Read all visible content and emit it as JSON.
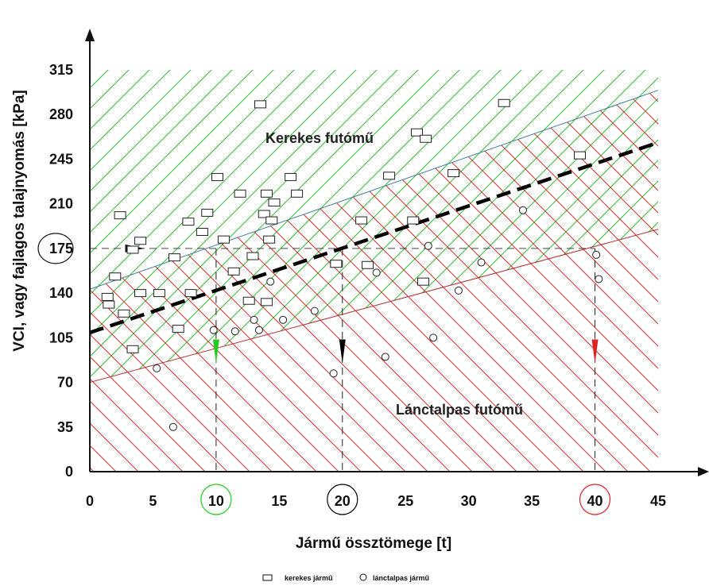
{
  "chart_data": {
    "type": "scatter",
    "xlabel": "Jármű össztömege [t]",
    "ylabel": "VCI, vagy fajlagos talajnyomás [kPa]",
    "xlim": [
      0,
      45
    ],
    "ylim": [
      0,
      315
    ],
    "x_ticks": [
      "0",
      "5",
      "10",
      "15",
      "20",
      "25",
      "30",
      "35",
      "40",
      "45"
    ],
    "y_ticks": [
      "0",
      "35",
      "70",
      "105",
      "140",
      "175",
      "210",
      "245",
      "280",
      "315"
    ],
    "grid": false,
    "zones": [
      {
        "label": "Kerekes futómű",
        "color": "#33bb33",
        "boundary": {
          "x": [
            0,
            45
          ],
          "y": [
            143,
            299
          ]
        }
      },
      {
        "label": "Lánctalpas futómű",
        "color": "#cc3333",
        "boundary": {
          "x": [
            0,
            45
          ],
          "y": [
            70,
            190
          ]
        }
      }
    ],
    "trend_line": {
      "x": [
        0,
        45
      ],
      "y": [
        109,
        258
      ],
      "color": "#000000"
    },
    "reference": {
      "y": 175,
      "x_values": [
        10,
        20,
        40
      ],
      "colors": [
        "#22cc22",
        "#000000",
        "#dd2222"
      ]
    },
    "series": [
      {
        "name": "kerekes jármű",
        "marker": "square",
        "points": [
          [
            1.4,
            137
          ],
          [
            1.5,
            131
          ],
          [
            2.0,
            153
          ],
          [
            2.4,
            201
          ],
          [
            2.7,
            124
          ],
          [
            3.4,
            96
          ],
          [
            3.4,
            174
          ],
          [
            4.0,
            181
          ],
          [
            4.0,
            140
          ],
          [
            5.5,
            140
          ],
          [
            6.7,
            168
          ],
          [
            7.0,
            112
          ],
          [
            7.8,
            196
          ],
          [
            8.0,
            140
          ],
          [
            8.9,
            188
          ],
          [
            9.3,
            203
          ],
          [
            10.1,
            231
          ],
          [
            10.6,
            182
          ],
          [
            11.4,
            157
          ],
          [
            11.9,
            218
          ],
          [
            12.6,
            134
          ],
          [
            12.9,
            169
          ],
          [
            13.5,
            288
          ],
          [
            13.8,
            202
          ],
          [
            14.0,
            218
          ],
          [
            14.0,
            133
          ],
          [
            14.2,
            182
          ],
          [
            14.4,
            197
          ],
          [
            14.6,
            211
          ],
          [
            15.9,
            231
          ],
          [
            16.4,
            218
          ],
          [
            19.5,
            163
          ],
          [
            21.5,
            197
          ],
          [
            22.0,
            162
          ],
          [
            23.7,
            232
          ],
          [
            25.6,
            197
          ],
          [
            25.9,
            266
          ],
          [
            26.4,
            149
          ],
          [
            26.6,
            261
          ],
          [
            28.8,
            234
          ],
          [
            32.8,
            289
          ],
          [
            38.8,
            248
          ]
        ]
      },
      {
        "name": "lánctalpas jármű",
        "marker": "circle",
        "points": [
          [
            5.3,
            81
          ],
          [
            6.6,
            35
          ],
          [
            9.8,
            111
          ],
          [
            11.5,
            110
          ],
          [
            13.0,
            119
          ],
          [
            13.4,
            111
          ],
          [
            14.3,
            149
          ],
          [
            15.3,
            119
          ],
          [
            17.8,
            126
          ],
          [
            19.3,
            77
          ],
          [
            22.7,
            156
          ],
          [
            23.4,
            90
          ],
          [
            26.8,
            177
          ],
          [
            27.2,
            105
          ],
          [
            29.2,
            142
          ],
          [
            31.0,
            164
          ],
          [
            34.3,
            205
          ],
          [
            40.1,
            170
          ],
          [
            40.3,
            151
          ]
        ]
      }
    ]
  },
  "labels": {
    "ylabel": "VCI, vagy fajlagos talajnyomás [kPa]",
    "xlabel": "Jármű össztömege [t]",
    "zone_upper": "Kerekes futómű",
    "zone_lower": "Lánctalpas futómű",
    "legend_square": "kerekes jármű",
    "legend_circle": "lánctalpas jármű"
  }
}
